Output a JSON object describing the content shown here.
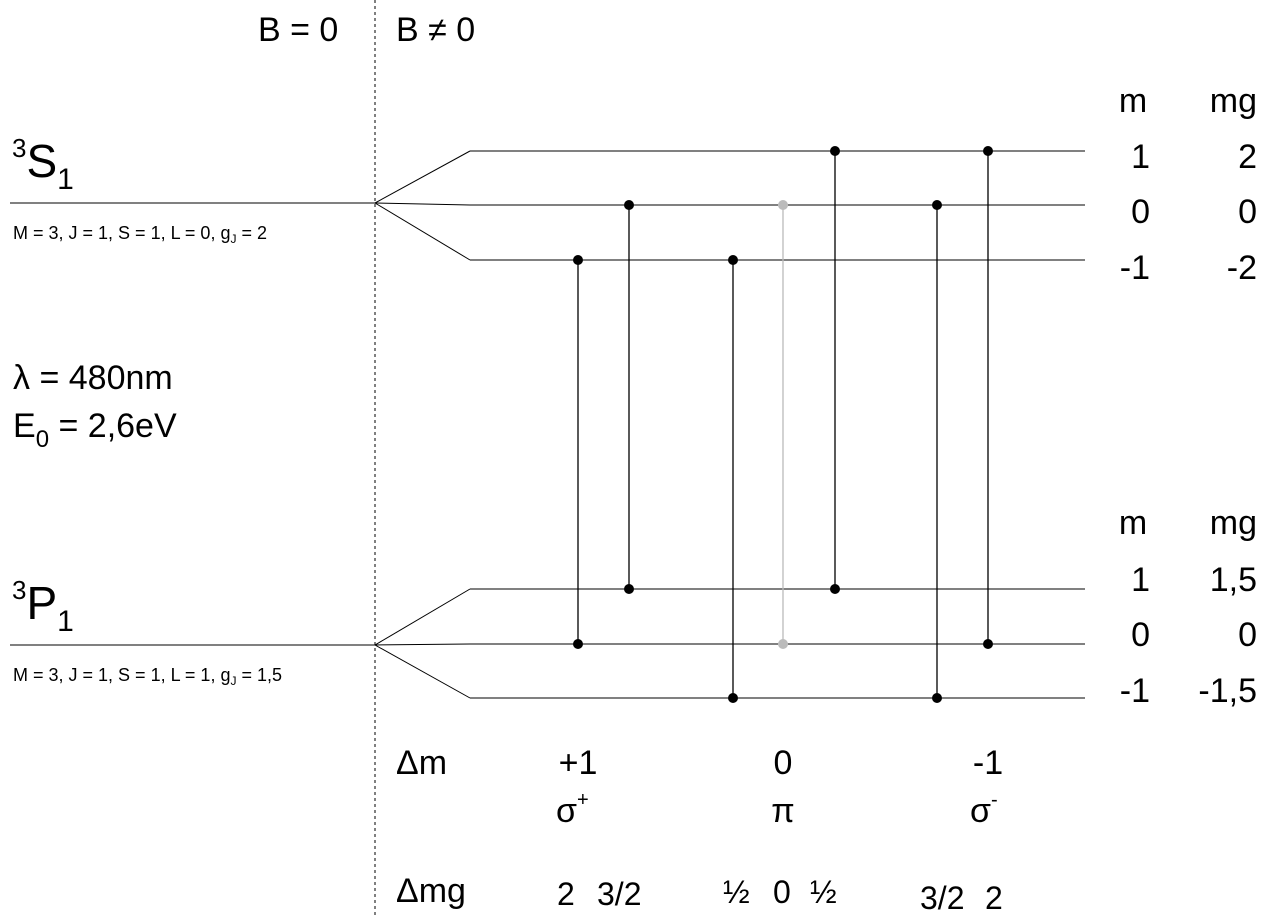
{
  "header": {
    "b_zero": "B = 0",
    "b_nonzero": "B ≠ 0"
  },
  "upper_state": {
    "term_sup": "3",
    "term_letter": "S",
    "term_sub": "1",
    "params_main": "M = 3, J = 1, S = 1, L = 0, g",
    "params_sub": "J",
    "params_tail": " = 2",
    "col_m": "m",
    "col_mg": "mg",
    "m_values": [
      "1",
      "0",
      "-1"
    ],
    "mg_values": [
      "2",
      "0",
      "-2"
    ]
  },
  "lower_state": {
    "term_sup": "3",
    "term_letter": "P",
    "term_sub": "1",
    "params_main": "M = 3, J = 1, S = 1, L = 1, g",
    "params_sub": "J",
    "params_tail": " = 1,5",
    "col_m": "m",
    "col_mg": "mg",
    "m_values": [
      "1",
      "0",
      "-1"
    ],
    "mg_values": [
      "1,5",
      "0",
      "-1,5"
    ]
  },
  "wavelength": "λ = 480nm",
  "energy": {
    "prefix": "E",
    "sub": "0",
    "tail": " = 2,6eV"
  },
  "delta_m": {
    "label": "Δm",
    "groups": [
      {
        "value": "+1",
        "symbol": "σ",
        "symbol_sup": "+"
      },
      {
        "value": "0",
        "symbol": "π",
        "symbol_sup": ""
      },
      {
        "value": "-1",
        "symbol": "σ",
        "symbol_sup": "-"
      }
    ]
  },
  "delta_mg": {
    "label": "Δmg",
    "values": [
      "2",
      "3/2",
      "½",
      "0",
      "½",
      "3/2",
      "2"
    ]
  },
  "transitions": [
    {
      "from_m": -1,
      "to_m": 0,
      "color": "#000000"
    },
    {
      "from_m": 0,
      "to_m": 1,
      "color": "#000000"
    },
    {
      "from_m": -1,
      "to_m": -1,
      "color": "#000000"
    },
    {
      "from_m": 0,
      "to_m": 0,
      "color": "#bbbbbb"
    },
    {
      "from_m": 1,
      "to_m": 1,
      "color": "#000000"
    },
    {
      "from_m": 0,
      "to_m": -1,
      "color": "#000000"
    },
    {
      "from_m": 1,
      "to_m": 0,
      "color": "#000000"
    }
  ]
}
